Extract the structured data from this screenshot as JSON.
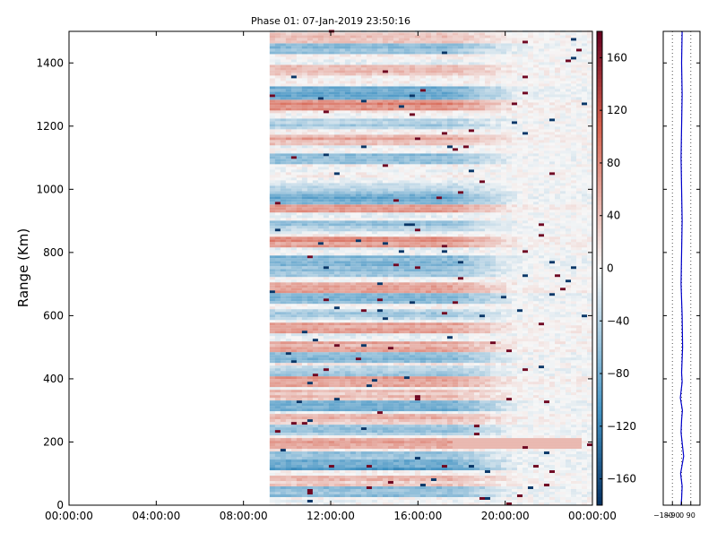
{
  "chart_data": [
    {
      "type": "heatmap",
      "title": "Phase 01: 07-Jan-2019 23:50:16",
      "xlabel": "",
      "ylabel": "Range (Km)",
      "x_ticks": [
        "00:00:00",
        "04:00:00",
        "08:00:00",
        "12:00:00",
        "16:00:00",
        "20:00:00",
        "00:00:00"
      ],
      "x_range_hours": [
        0,
        24
      ],
      "y_ticks": [
        0,
        200,
        400,
        600,
        800,
        1000,
        1200,
        1400
      ],
      "ylim": [
        0,
        1500
      ],
      "data_start_hour": 9.2,
      "data_end_hour": 24,
      "colorbar": {
        "ticks": [
          160,
          120,
          80,
          40,
          0,
          -40,
          -80,
          -120,
          -160
        ],
        "range": [
          -180,
          180
        ],
        "colormap": "RdBu_r",
        "colors": {
          "neg": "#053061",
          "mid": "#f7f7f7",
          "pos": "#67001f"
        }
      },
      "range_profiles": [
        {
          "range_km": 40,
          "value": -60
        },
        {
          "range_km": 75,
          "value": 35
        },
        {
          "range_km": 125,
          "value": -90
        },
        {
          "range_km": 150,
          "value": -55
        },
        {
          "range_km": 190,
          "value": 55
        },
        {
          "range_km": 235,
          "value": -50
        },
        {
          "range_km": 265,
          "value": 45
        },
        {
          "range_km": 310,
          "value": -70
        },
        {
          "range_km": 340,
          "value": 40
        },
        {
          "range_km": 390,
          "value": 65
        },
        {
          "range_km": 420,
          "value": -45
        },
        {
          "range_km": 460,
          "value": -60
        },
        {
          "range_km": 500,
          "value": 50
        },
        {
          "range_km": 560,
          "value": 60
        },
        {
          "range_km": 600,
          "value": -40
        },
        {
          "range_km": 650,
          "value": -65
        },
        {
          "range_km": 680,
          "value": 55
        },
        {
          "range_km": 740,
          "value": -50
        },
        {
          "range_km": 770,
          "value": -70
        },
        {
          "range_km": 830,
          "value": 70
        },
        {
          "range_km": 880,
          "value": -45
        },
        {
          "range_km": 940,
          "value": 60
        },
        {
          "range_km": 960,
          "value": -75
        },
        {
          "range_km": 1000,
          "value": -40
        },
        {
          "range_km": 1090,
          "value": -55
        },
        {
          "range_km": 1150,
          "value": 50
        },
        {
          "range_km": 1200,
          "value": -45
        },
        {
          "range_km": 1260,
          "value": 75
        },
        {
          "range_km": 1300,
          "value": -80
        },
        {
          "range_km": 1370,
          "value": 45
        },
        {
          "range_km": 1440,
          "value": -60
        },
        {
          "range_km": 1470,
          "value": 40
        }
      ]
    },
    {
      "type": "line",
      "title": "",
      "x_ticks": [
        "−180",
        "−90",
        "0",
        "90"
      ],
      "xlim": [
        -180,
        180
      ],
      "ylim": [
        0,
        1500
      ],
      "y_tick_values": [
        0,
        200,
        400,
        600,
        800,
        1000,
        1200,
        1400
      ],
      "line_color": "#0000cc",
      "profile": [
        [
          0,
          -5
        ],
        [
          20,
          0
        ],
        [
          60,
          5
        ],
        [
          100,
          -10
        ],
        [
          155,
          20
        ],
        [
          185,
          10
        ],
        [
          230,
          -5
        ],
        [
          270,
          0
        ],
        [
          300,
          8
        ],
        [
          340,
          -12
        ],
        [
          390,
          5
        ],
        [
          420,
          0
        ],
        [
          500,
          10
        ],
        [
          600,
          5
        ],
        [
          700,
          -5
        ],
        [
          800,
          0
        ],
        [
          900,
          5
        ],
        [
          1000,
          0
        ],
        [
          1100,
          -5
        ],
        [
          1200,
          0
        ],
        [
          1300,
          5
        ],
        [
          1400,
          0
        ],
        [
          1500,
          5
        ]
      ]
    }
  ]
}
